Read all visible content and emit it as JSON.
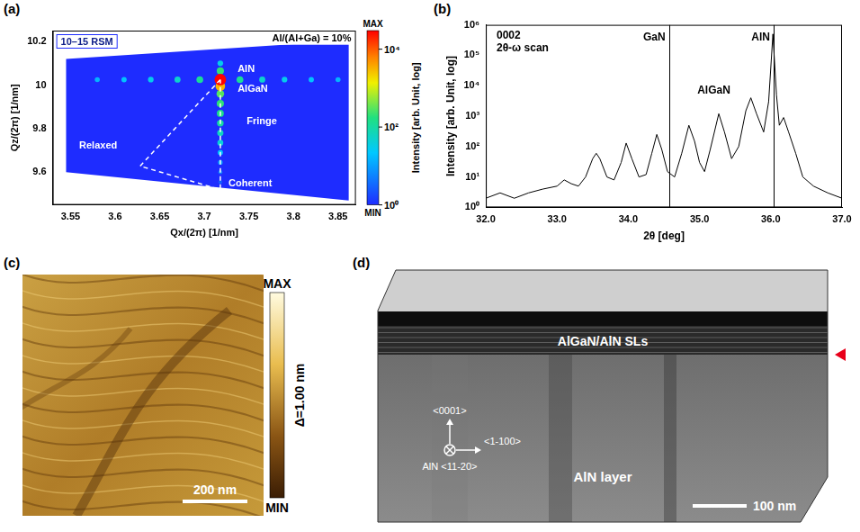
{
  "chart_data": [
    {
      "panel": "(a)",
      "type": "heatmap",
      "title": "10–15 RSM",
      "annotations": [
        "Al/(Al+Ga) = 10%",
        "AlN",
        "AlGaN",
        "Fringe",
        "Relaxed",
        "Coherent"
      ],
      "x_label": "Qx/(2π) [1/nm]",
      "y_label": "Qz/(2π) [1/nm]",
      "xlim": [
        3.53,
        3.87
      ],
      "xticks": [
        3.55,
        3.6,
        3.65,
        3.7,
        3.75,
        3.8,
        3.85
      ],
      "ylim": [
        9.45,
        10.25
      ],
      "yticks": [
        9.6,
        9.8,
        10,
        10.2
      ],
      "grid": false,
      "scan_region": {
        "x": [
          3.545,
          3.862,
          3.862,
          3.545
        ],
        "y": [
          10.12,
          10.205,
          9.47,
          9.6
        ]
      },
      "spots": {
        "x": [
          3.58,
          3.61,
          3.64,
          3.67,
          3.695,
          3.74,
          3.765,
          3.79,
          3.82,
          3.85,
          3.718,
          3.718,
          3.718,
          3.718,
          3.718,
          3.718,
          3.718,
          3.718,
          3.718,
          3.718,
          3.718,
          3.718,
          3.718,
          3.718
        ],
        "y": [
          10.025,
          10.025,
          10.025,
          10.025,
          10.025,
          10.025,
          10.025,
          10.025,
          10.025,
          10.025,
          10.1,
          10.065,
          9.555,
          9.6,
          9.645,
          9.69,
          9.735,
          9.78,
          9.825,
          9.87,
          9.915,
          9.96,
          9.995,
          10.025
        ],
        "intensity": [
          15,
          20,
          30,
          50,
          120,
          120,
          50,
          30,
          20,
          15,
          30,
          200,
          3,
          5,
          10,
          20,
          40,
          60,
          100,
          150,
          200,
          300,
          3000,
          30000
        ]
      },
      "guide_lines": [
        {
          "x": [
            3.718,
            3.628,
            3.718,
            3.718
          ],
          "y": [
            10.025,
            9.628,
            9.52,
            10.025
          ],
          "line_style": "dashed"
        }
      ],
      "colorbar": {
        "title": "Intensity [arb. Unit, log]",
        "range": [
          1,
          30000
        ],
        "ticks": [
          {
            "value": 1,
            "label": "10⁰"
          },
          {
            "value": 100,
            "label": "10²"
          },
          {
            "value": 10000,
            "label": "10⁴"
          }
        ],
        "max_label": "MAX",
        "min_label": "MIN"
      }
    },
    {
      "panel": "(b)",
      "type": "line",
      "annotations": [
        "0002",
        "2θ-ω scan",
        "AlGaN"
      ],
      "x_label": "2θ [deg]",
      "y_label": "Intensity [arb. Unit, log]",
      "x": [
        32.0,
        32.2,
        32.4,
        32.6,
        32.8,
        33.0,
        33.1,
        33.2,
        33.3,
        33.4,
        33.5,
        33.55,
        33.6,
        33.7,
        33.8,
        33.9,
        33.97,
        34.05,
        34.15,
        34.25,
        34.33,
        34.4,
        34.47,
        34.55,
        34.65,
        34.75,
        34.85,
        34.93,
        35.0,
        35.07,
        35.15,
        35.27,
        35.35,
        35.45,
        35.55,
        35.65,
        35.72,
        35.8,
        35.9,
        35.97,
        36.03,
        36.08,
        36.12,
        36.18,
        36.25,
        36.35,
        36.45,
        36.6,
        36.8,
        37.0
      ],
      "values": [
        2,
        3,
        2,
        3,
        4,
        5,
        8,
        6,
        5,
        10,
        40,
        60,
        40,
        10,
        8,
        30,
        130,
        40,
        10,
        12,
        60,
        250,
        80,
        15,
        10,
        60,
        500,
        150,
        30,
        15,
        80,
        1200,
        300,
        40,
        100,
        1500,
        4000,
        1200,
        300,
        3000,
        500000,
        5000,
        500,
        900,
        300,
        60,
        10,
        5,
        3,
        2
      ],
      "color": "#000000",
      "xlim": [
        32,
        37
      ],
      "xticks": [
        {
          "value": 32,
          "label": "32.0"
        },
        {
          "value": 33,
          "label": "33.0"
        },
        {
          "value": 34,
          "label": "34.0"
        },
        {
          "value": 35,
          "label": "35.0"
        },
        {
          "value": 36,
          "label": "36.0"
        },
        {
          "value": 37,
          "label": "37.0"
        }
      ],
      "ylim": [
        1,
        1000000
      ],
      "yticks": [
        {
          "value": 1,
          "label": "10⁰"
        },
        {
          "value": 10,
          "label": "10¹"
        },
        {
          "value": 100,
          "label": "10²"
        },
        {
          "value": 1000,
          "label": "10³"
        },
        {
          "value": 10000,
          "label": "10⁴"
        },
        {
          "value": 100000,
          "label": "10⁵"
        },
        {
          "value": 1000000,
          "label": "10⁶"
        }
      ],
      "log": "y",
      "grid": false,
      "reference_lines": [
        {
          "label": "GaN",
          "x": 34.57
        },
        {
          "label": "AlN",
          "x": 36.04
        }
      ]
    }
  ],
  "images": [
    {
      "panel": "(c)",
      "scale_bar": "200 nm",
      "colorbar": {
        "title": "Δ=1.00 nm",
        "max_label": "MAX",
        "min_label": "MIN"
      }
    },
    {
      "panel": "(d)",
      "labels": [
        "AlGaN/AlN SLs",
        "AlN layer"
      ],
      "directions": [
        "<0001>",
        "<1-100>",
        "AlN <11-20>"
      ],
      "scale_bar": "100 nm"
    }
  ]
}
